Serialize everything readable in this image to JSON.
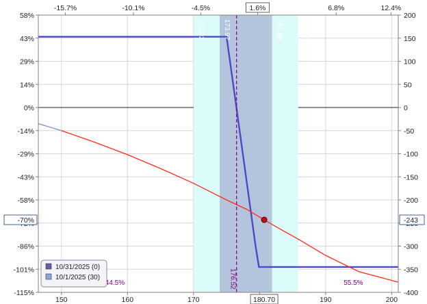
{
  "chart_data": {
    "type": "line",
    "x_range": [
      146.5,
      201
    ],
    "y_range_left": [
      -115,
      58
    ],
    "y_range_right": [
      -400,
      200
    ],
    "top_ticks": [
      {
        "x": 150.6,
        "label": "-15.7%"
      },
      {
        "x": 160.9,
        "label": "-10.1%"
      },
      {
        "x": 171.1,
        "label": "-4.5%"
      },
      {
        "x": 179.7,
        "label": "1.6%"
      },
      {
        "x": 191.6,
        "label": "6.8%"
      },
      {
        "x": 199.9,
        "label": "12.4%"
      }
    ],
    "x_ticks": [
      150,
      160,
      170,
      180,
      190,
      200
    ],
    "y_ticks_left": [
      58,
      43,
      29,
      14,
      0,
      -14,
      -29,
      -43,
      -58,
      -72,
      -86,
      -101,
      -115
    ],
    "y_ticks_right": [
      200,
      150,
      100,
      50,
      0,
      -50,
      -100,
      -150,
      -200,
      -250,
      -300,
      -350,
      -400
    ],
    "bands": [
      {
        "from": 170.02,
        "to": 185.84,
        "color": "#dcfcfc"
      },
      {
        "from": 173.97,
        "to": 181.89,
        "color": "#b4c4dc"
      }
    ],
    "vertical_labels": [
      {
        "x": 170.02,
        "label": "170.02"
      },
      {
        "x": 173.97,
        "label": "173.97"
      },
      {
        "x": 181.89,
        "label": "181.89"
      },
      {
        "x": 185.84,
        "label": "185.84"
      }
    ],
    "dashed_line": {
      "x": 176.52,
      "label": "176.52",
      "color": "#800080"
    },
    "current_price": {
      "x": 180.7,
      "label": "180.70",
      "pl": -243,
      "pct_label": "-70%"
    },
    "probabilities": [
      {
        "x": 158.1,
        "label": "44.5%"
      },
      {
        "x": 194.2,
        "label": "55.5%"
      }
    ],
    "series": [
      {
        "name": "10/31/2025 (0)",
        "color": "#4a4ac8",
        "points": [
          [
            146.5,
            153
          ],
          [
            175.0,
            153
          ],
          [
            176.5,
            0
          ],
          [
            179.4,
            -300
          ],
          [
            179.9,
            -345
          ],
          [
            201,
            -345
          ]
        ]
      },
      {
        "name": "10/1/2025 (30)",
        "color": "#ff2a1a",
        "points": [
          [
            146.5,
            -35
          ],
          [
            150,
            -50
          ],
          [
            155,
            -75
          ],
          [
            160,
            -102
          ],
          [
            165,
            -132
          ],
          [
            170,
            -164
          ],
          [
            175,
            -200
          ],
          [
            178,
            -220
          ],
          [
            180.7,
            -243
          ],
          [
            183,
            -262
          ],
          [
            186,
            -286
          ],
          [
            190,
            -320
          ],
          [
            195,
            -355
          ],
          [
            201,
            -378
          ]
        ]
      }
    ],
    "legend": [
      {
        "label": "10/31/2025 (0)",
        "color": "#6c5ca8"
      },
      {
        "label": "10/1/2025 (30)",
        "color": "#8fa7d8"
      }
    ]
  }
}
